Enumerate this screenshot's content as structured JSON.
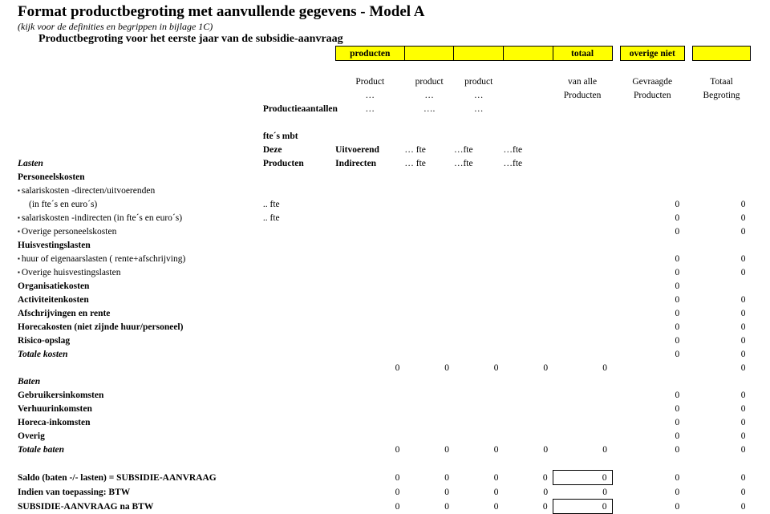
{
  "header": {
    "title": "Format productbegroting met aanvullende gegevens - Model A",
    "subtitle": "(kijk voor de definities en begrippen in bijlage 1C)",
    "section": "Productbegroting voor het eerste jaar van de subsidie-aanvraag"
  },
  "labels": {
    "producten": "producten",
    "totaal": "totaal",
    "overige_niet": "overige niet",
    "Product_cap": "Product",
    "product": "product",
    "dots": "…",
    "ellip4": "….",
    "Productieaantallen": "Productieaantallen",
    "van_alle": "van alle",
    "Producten": "Producten",
    "Gevraagde": "Gevraagde",
    "Totaal": "Totaal",
    "Begroting": "Begroting",
    "fte_mbt": "fte´s mbt",
    "Deze": "Deze",
    "Uitvoerend": "Uitvoerend",
    "Indirecten": "Indirecten",
    "fte_sp": "… fte",
    "fte_el": "…fte",
    "Lasten": "Lasten",
    "Personeelskosten": "Personeelskosten",
    "salaris_direct": "salariskosten -directen/uitvoerenden",
    "in_fte": "(in fte´s en euro´s)",
    "salaris_indirect": "salariskosten -indirecten (in fte´s en euro´s)",
    "overige_pers": "Overige personeelskosten",
    "Huisvestingslasten": "Huisvestingslasten",
    "huur": "huur of eigenaarslasten ( rente+afschrijving)",
    "overige_huisv": "Overige huisvestingslasten",
    "Organisatiekosten": "Organisatiekosten",
    "Activiteitenkosten": "Activiteitenkosten",
    "Afschrijvingen": "Afschrijvingen en rente",
    "Horecakosten": "Horecakosten (niet zijnde huur/personeel)",
    "Risico": "Risico-opslag",
    "Totale_kosten": "Totale kosten",
    "Baten": "Baten",
    "Gebruikersinkomsten": "Gebruikersinkomsten",
    "Verhuurinkomsten": "Verhuurinkomsten",
    "Horeca_ink": "Horeca-inkomsten",
    "Overig": "Overig",
    "Totale_baten": "Totale baten",
    "Saldo": "Saldo (baten -/- lasten) = SUBSIDIE-AANVRAAG",
    "BTW_line": "Indien van toepassing: BTW",
    "Subsidie_na_btw": "SUBSIDIE-AANVRAAG na BTW",
    "dotdot_fte": ".. fte"
  },
  "vals": {
    "zero": "0"
  },
  "colors": {
    "highlight": "#ffff00",
    "text": "#000000",
    "bg": "#ffffff"
  }
}
